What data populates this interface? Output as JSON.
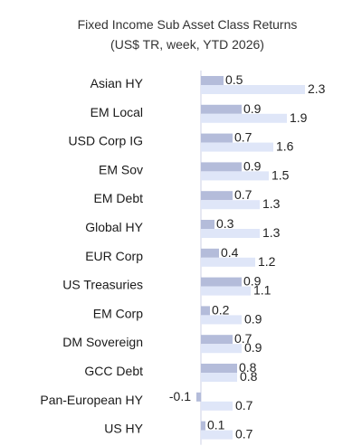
{
  "chart_data": {
    "type": "bar",
    "orientation": "horizontal",
    "title": "Fixed Income Sub Asset Class Returns",
    "subtitle": "(US$ TR, week, YTD 2026)",
    "xlabel": "",
    "ylabel": "",
    "grid": false,
    "legend": "none",
    "categories": [
      "Asian HY",
      "EM Local",
      "USD Corp IG",
      "EM Sov",
      "EM Debt",
      "Global HY",
      "EUR Corp",
      "US Treasuries",
      "EM Corp",
      "DM Sovereign",
      "GCC Debt",
      "Pan-European HY",
      "US HY"
    ],
    "series": [
      {
        "values": [
          0.5,
          0.9,
          0.7,
          0.9,
          0.7,
          0.3,
          0.4,
          0.9,
          0.2,
          0.7,
          0.8,
          -0.1,
          0.1
        ],
        "color": "#b4bcda"
      },
      {
        "values": [
          2.3,
          1.9,
          1.6,
          1.5,
          1.3,
          1.3,
          1.2,
          1.1,
          0.9,
          0.9,
          0.8,
          0.7,
          0.7
        ],
        "color": "#dfe6f8"
      }
    ],
    "axis_line_color": "#ccd2e6"
  }
}
